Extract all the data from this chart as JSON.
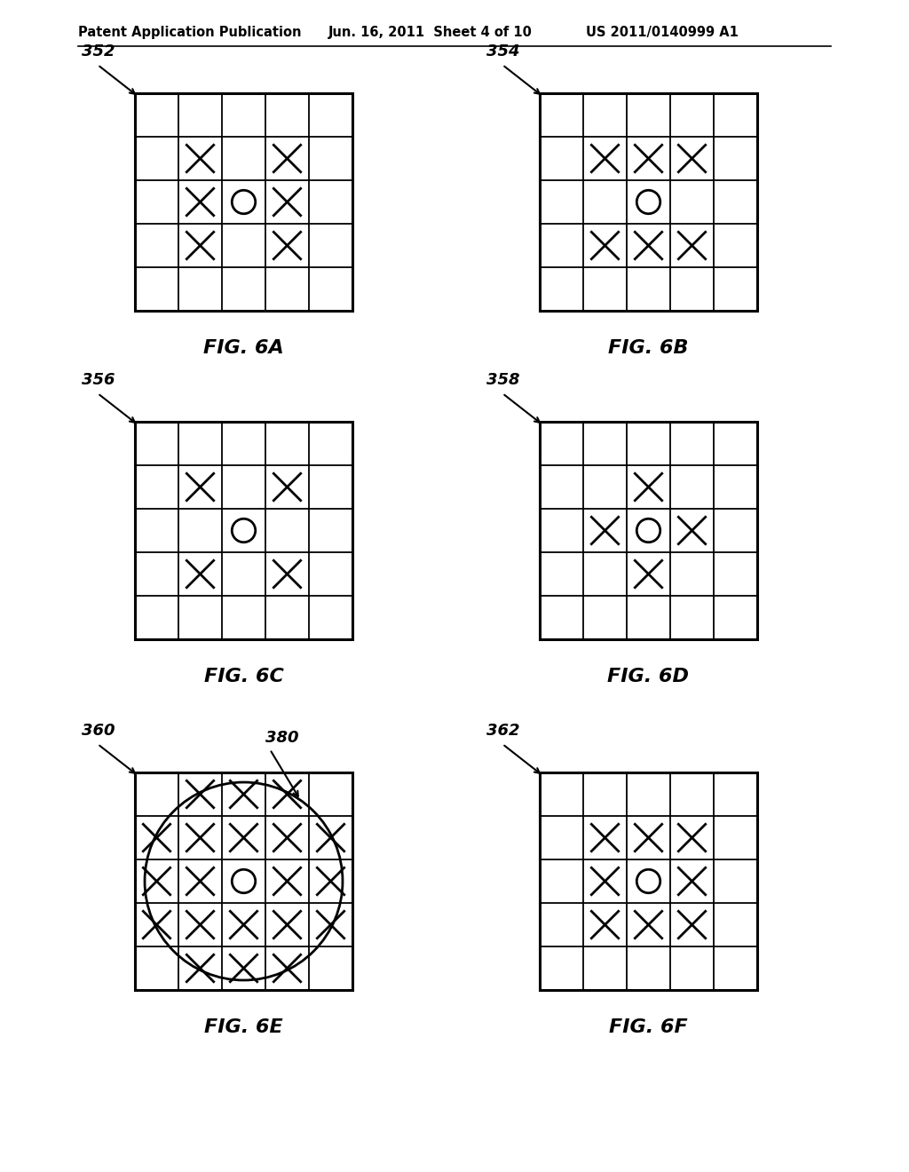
{
  "header_left": "Patent Application Publication",
  "header_mid": "Jun. 16, 2011  Sheet 4 of 10",
  "header_right": "US 2011/0140999 A1",
  "bg_color": "#ffffff",
  "grid_line_color": "#000000",
  "figures": [
    {
      "label": "352",
      "fig_caption": "FIG. 6A",
      "grid_cols": 5,
      "grid_rows": 5,
      "symbols": [
        {
          "row": 1,
          "col": 1,
          "type": "X"
        },
        {
          "row": 1,
          "col": 3,
          "type": "X"
        },
        {
          "row": 2,
          "col": 1,
          "type": "X"
        },
        {
          "row": 2,
          "col": 2,
          "type": "O"
        },
        {
          "row": 2,
          "col": 3,
          "type": "X"
        },
        {
          "row": 3,
          "col": 1,
          "type": "X"
        },
        {
          "row": 3,
          "col": 3,
          "type": "X"
        }
      ],
      "circle_overlay": false
    },
    {
      "label": "354",
      "fig_caption": "FIG. 6B",
      "grid_cols": 5,
      "grid_rows": 5,
      "symbols": [
        {
          "row": 1,
          "col": 1,
          "type": "X"
        },
        {
          "row": 1,
          "col": 2,
          "type": "X"
        },
        {
          "row": 1,
          "col": 3,
          "type": "X"
        },
        {
          "row": 2,
          "col": 2,
          "type": "O"
        },
        {
          "row": 3,
          "col": 1,
          "type": "X"
        },
        {
          "row": 3,
          "col": 2,
          "type": "X"
        },
        {
          "row": 3,
          "col": 3,
          "type": "X"
        }
      ],
      "circle_overlay": false
    },
    {
      "label": "356",
      "fig_caption": "FIG. 6C",
      "grid_cols": 5,
      "grid_rows": 5,
      "symbols": [
        {
          "row": 1,
          "col": 1,
          "type": "X"
        },
        {
          "row": 1,
          "col": 3,
          "type": "X"
        },
        {
          "row": 2,
          "col": 2,
          "type": "O"
        },
        {
          "row": 3,
          "col": 1,
          "type": "X"
        },
        {
          "row": 3,
          "col": 3,
          "type": "X"
        }
      ],
      "circle_overlay": false
    },
    {
      "label": "358",
      "fig_caption": "FIG. 6D",
      "grid_cols": 5,
      "grid_rows": 5,
      "symbols": [
        {
          "row": 1,
          "col": 2,
          "type": "X"
        },
        {
          "row": 2,
          "col": 1,
          "type": "X"
        },
        {
          "row": 2,
          "col": 2,
          "type": "O"
        },
        {
          "row": 2,
          "col": 3,
          "type": "X"
        },
        {
          "row": 3,
          "col": 2,
          "type": "X"
        }
      ],
      "circle_overlay": false
    },
    {
      "label": "360",
      "fig_caption": "FIG. 6E",
      "grid_cols": 5,
      "grid_rows": 5,
      "symbols": [
        {
          "row": 0,
          "col": 1,
          "type": "X"
        },
        {
          "row": 0,
          "col": 2,
          "type": "X"
        },
        {
          "row": 0,
          "col": 3,
          "type": "X"
        },
        {
          "row": 1,
          "col": 0,
          "type": "X"
        },
        {
          "row": 1,
          "col": 1,
          "type": "X"
        },
        {
          "row": 1,
          "col": 2,
          "type": "X"
        },
        {
          "row": 1,
          "col": 3,
          "type": "X"
        },
        {
          "row": 1,
          "col": 4,
          "type": "X"
        },
        {
          "row": 2,
          "col": 0,
          "type": "X"
        },
        {
          "row": 2,
          "col": 1,
          "type": "X"
        },
        {
          "row": 2,
          "col": 2,
          "type": "O"
        },
        {
          "row": 2,
          "col": 3,
          "type": "X"
        },
        {
          "row": 2,
          "col": 4,
          "type": "X"
        },
        {
          "row": 3,
          "col": 0,
          "type": "X"
        },
        {
          "row": 3,
          "col": 1,
          "type": "X"
        },
        {
          "row": 3,
          "col": 2,
          "type": "X"
        },
        {
          "row": 3,
          "col": 3,
          "type": "X"
        },
        {
          "row": 3,
          "col": 4,
          "type": "X"
        },
        {
          "row": 4,
          "col": 1,
          "type": "X"
        },
        {
          "row": 4,
          "col": 2,
          "type": "X"
        },
        {
          "row": 4,
          "col": 3,
          "type": "X"
        }
      ],
      "circle_overlay": true,
      "circle_label": "380"
    },
    {
      "label": "362",
      "fig_caption": "FIG. 6F",
      "grid_cols": 5,
      "grid_rows": 5,
      "symbols": [
        {
          "row": 1,
          "col": 1,
          "type": "X"
        },
        {
          "row": 1,
          "col": 2,
          "type": "X"
        },
        {
          "row": 1,
          "col": 3,
          "type": "X"
        },
        {
          "row": 2,
          "col": 1,
          "type": "X"
        },
        {
          "row": 2,
          "col": 2,
          "type": "O"
        },
        {
          "row": 2,
          "col": 3,
          "type": "X"
        },
        {
          "row": 3,
          "col": 1,
          "type": "X"
        },
        {
          "row": 3,
          "col": 2,
          "type": "X"
        },
        {
          "row": 3,
          "col": 3,
          "type": "X"
        }
      ],
      "circle_overlay": false
    }
  ]
}
